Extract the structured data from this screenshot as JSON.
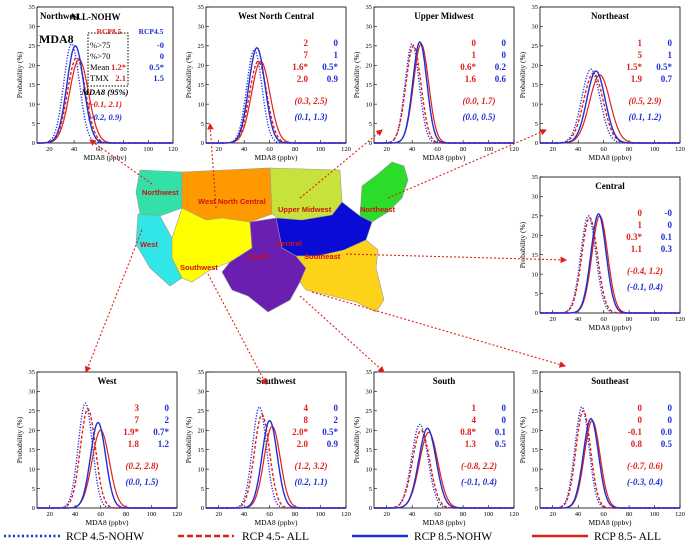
{
  "figure": {
    "common_xlabel": "MDA8 (ppbv)",
    "common_ylabel": "Probability (%)",
    "map_regions": [
      "Northwest",
      "West North Central",
      "Upper Midwest",
      "Northeast",
      "West",
      "Southwest",
      "South",
      "Southeast",
      "Central"
    ],
    "legend": [
      {
        "label": "RCP 4.5-NOHW",
        "color": "#1f2fd6",
        "dash": "dotted"
      },
      {
        "label": "RCP 4.5- ALL",
        "color": "#e0201a",
        "dash": "dashed"
      },
      {
        "label": "RCP 8.5-NOHW",
        "color": "#1f2fd6",
        "dash": "solid"
      },
      {
        "label": "RCP 8.5- ALL",
        "color": "#e0201a",
        "dash": "solid"
      }
    ],
    "key_box": {
      "title": "ALL-NOHW",
      "col_headers": [
        "RCP8.5",
        "RCP4.5"
      ],
      "rows": [
        "%>75",
        "%>70",
        "Mean",
        "TMX"
      ],
      "metric": "MDA8",
      "ci_label": "MDA8 (95%)"
    }
  },
  "chart_data": [
    {
      "type": "line",
      "title": "Northwest",
      "xlim": [
        10,
        120
      ],
      "ylim": [
        0,
        35
      ],
      "xticks": [
        20,
        40,
        60,
        80,
        100,
        120
      ],
      "yticks": [
        0,
        5,
        10,
        15,
        20,
        25,
        30,
        35
      ],
      "curves": {
        "45N": [
          38,
          25.5,
          15
        ],
        "45A": [
          42,
          22,
          17
        ],
        "85N": [
          41,
          25,
          16
        ],
        "85A": [
          44,
          21.5,
          18
        ]
      },
      "stats_red": [
        "",
        "",
        "1.2*",
        "2.1"
      ],
      "stats_blue": [
        "-0",
        "0",
        "0.5*",
        "1.5"
      ],
      "ci_red": "(-0.1, 2.1)",
      "ci_blue": "(-0.2, 0.9)"
    },
    {
      "type": "line",
      "title": "West North Central",
      "xlim": [
        10,
        120
      ],
      "ylim": [
        0,
        35
      ],
      "xticks": [
        20,
        40,
        60,
        80,
        100,
        120
      ],
      "yticks": [
        0,
        5,
        10,
        15,
        20,
        25,
        30,
        35
      ],
      "curves": {
        "45N": [
          48,
          24,
          14
        ],
        "45A": [
          51,
          21,
          16
        ],
        "85N": [
          50,
          24.5,
          15
        ],
        "85A": [
          53,
          21,
          17
        ]
      },
      "stats_red": [
        "2",
        "7",
        "1.6*",
        "2.0"
      ],
      "stats_blue": [
        "0",
        "1",
        "0.5*",
        "0.9"
      ],
      "ci_red": "(0.3, 2.5)",
      "ci_blue": "(0.1, 1.3)"
    },
    {
      "type": "line",
      "title": "Upper Midwest",
      "xlim": [
        10,
        120
      ],
      "ylim": [
        0,
        35
      ],
      "xticks": [
        20,
        40,
        60,
        80,
        100,
        120
      ],
      "yticks": [
        0,
        5,
        10,
        15,
        20,
        25,
        30,
        35
      ],
      "curves": {
        "45N": [
          40,
          25.5,
          13
        ],
        "45A": [
          41,
          25,
          14
        ],
        "85N": [
          46,
          26,
          13
        ],
        "85A": [
          47,
          25.5,
          14
        ]
      },
      "stats_red": [
        "0",
        "1",
        "0.6*",
        "1.6"
      ],
      "stats_blue": [
        "0",
        "0",
        "0.2",
        "0.6"
      ],
      "ci_red": "(0.0, 1.7)",
      "ci_blue": "(0.0, 0.5)"
    },
    {
      "type": "line",
      "title": "Northeast",
      "xlim": [
        10,
        120
      ],
      "ylim": [
        0,
        35
      ],
      "xticks": [
        20,
        40,
        60,
        80,
        100,
        120
      ],
      "yticks": [
        0,
        5,
        10,
        15,
        20,
        25,
        30,
        35
      ],
      "curves": {
        "45N": [
          50,
          19,
          17
        ],
        "45A": [
          52,
          18,
          18
        ],
        "85N": [
          54,
          18.5,
          17
        ],
        "85A": [
          57,
          17.5,
          19
        ]
      },
      "stats_red": [
        "1",
        "5",
        "1.5*",
        "1.9"
      ],
      "stats_blue": [
        "0",
        "1",
        "0.5*",
        "0.7"
      ],
      "ci_red": "(0.5, 2.9)",
      "ci_blue": "(0.1, 1.2)"
    },
    {
      "type": "line",
      "title": "Central",
      "xlim": [
        10,
        120
      ],
      "ylim": [
        0,
        35
      ],
      "xticks": [
        20,
        40,
        60,
        80,
        100,
        120
      ],
      "yticks": [
        0,
        5,
        10,
        15,
        20,
        25,
        30,
        35
      ],
      "curves": {
        "45N": [
          48,
          25,
          14
        ],
        "45A": [
          49,
          24.5,
          14.5
        ],
        "85N": [
          56,
          25.5,
          14
        ],
        "85A": [
          57,
          25,
          14.5
        ]
      },
      "stats_red": [
        "0",
        "1",
        "0.3*",
        "1.1"
      ],
      "stats_blue": [
        "-0",
        "0",
        "0.1",
        "0.3"
      ],
      "ci_red": "(-0.4, 1.2)",
      "ci_blue": "(-0.1, 0.4)"
    },
    {
      "type": "line",
      "title": "West",
      "xlim": [
        10,
        120
      ],
      "ylim": [
        0,
        35
      ],
      "xticks": [
        20,
        40,
        60,
        80,
        100,
        120
      ],
      "yticks": [
        0,
        5,
        10,
        15,
        20,
        25,
        30,
        35
      ],
      "curves": {
        "45N": [
          48,
          27,
          13
        ],
        "45A": [
          50,
          25.5,
          14
        ],
        "85N": [
          58,
          22,
          14
        ],
        "85A": [
          60,
          20,
          16
        ]
      },
      "stats_red": [
        "3",
        "7",
        "1.9*",
        "1.8"
      ],
      "stats_blue": [
        "0",
        "2",
        "0.7*",
        "1.2"
      ],
      "ci_red": "(0.2, 2.8)",
      "ci_blue": "(0.0, 1.5)"
    },
    {
      "type": "line",
      "title": "Southwest",
      "xlim": [
        10,
        120
      ],
      "ylim": [
        0,
        35
      ],
      "xticks": [
        20,
        40,
        60,
        80,
        100,
        120
      ],
      "yticks": [
        0,
        5,
        10,
        15,
        20,
        25,
        30,
        35
      ],
      "curves": {
        "45N": [
          52,
          26,
          13
        ],
        "45A": [
          54,
          24,
          14
        ],
        "85N": [
          60,
          22.5,
          14
        ],
        "85A": [
          62,
          21,
          15
        ]
      },
      "stats_red": [
        "4",
        "8",
        "2.0*",
        "2.0"
      ],
      "stats_blue": [
        "0",
        "2",
        "0.5*",
        "0.9"
      ],
      "ci_red": "(1.2, 3.2)",
      "ci_blue": "(0.2, 1.1)"
    },
    {
      "type": "line",
      "title": "South",
      "xlim": [
        10,
        120
      ],
      "ylim": [
        0,
        35
      ],
      "xticks": [
        20,
        40,
        60,
        80,
        100,
        120
      ],
      "yticks": [
        0,
        5,
        10,
        15,
        20,
        25,
        30,
        35
      ],
      "curves": {
        "45N": [
          46,
          21.5,
          15
        ],
        "45A": [
          47,
          20,
          16
        ],
        "85N": [
          52,
          20.5,
          16
        ],
        "85A": [
          53,
          19.5,
          17
        ]
      },
      "stats_red": [
        "1",
        "4",
        "0.8*",
        "1.3"
      ],
      "stats_blue": [
        "0",
        "0",
        "0.1",
        "0.5"
      ],
      "ci_red": "(-0.8, 2.2)",
      "ci_blue": "(-0.1, 0.4)"
    },
    {
      "type": "line",
      "title": "Southeast",
      "xlim": [
        10,
        120
      ],
      "ylim": [
        0,
        35
      ],
      "xticks": [
        20,
        40,
        60,
        80,
        100,
        120
      ],
      "yticks": [
        0,
        5,
        10,
        15,
        20,
        25,
        30,
        35
      ],
      "curves": {
        "45N": [
          43,
          26,
          13
        ],
        "45A": [
          44,
          25,
          13.5
        ],
        "85N": [
          50,
          23,
          14
        ],
        "85A": [
          51,
          22.5,
          14.5
        ]
      },
      "stats_red": [
        "0",
        "0",
        "-0.1",
        "0.8"
      ],
      "stats_blue": [
        "0",
        "0",
        "0.0",
        "0.5"
      ],
      "ci_red": "(-0.7, 0.6)",
      "ci_blue": "(-0.3, 0.4)"
    }
  ]
}
